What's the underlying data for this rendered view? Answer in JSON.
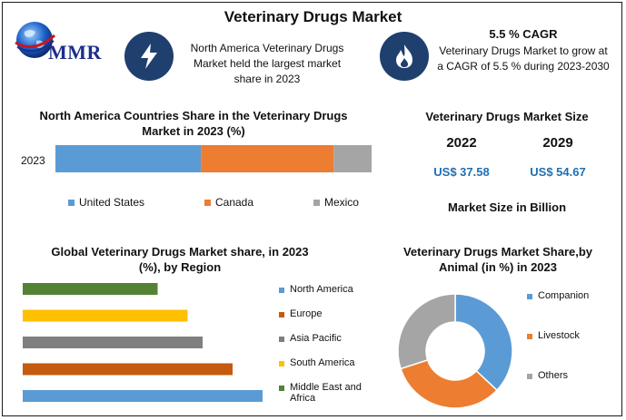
{
  "title": "Veterinary Drugs Market",
  "logo": {
    "text": "MMR"
  },
  "info": {
    "left_text": "North America Veterinary Drugs Market held the largest market share in 2023",
    "right_heading": "5.5 % CAGR",
    "right_text": "Veterinary Drugs Market to grow at a CAGR of 5.5 % during 2023-2030"
  },
  "market_size": {
    "title": "Veterinary Drugs Market Size",
    "year1": "2022",
    "year2": "2029",
    "value1": "US$ 37.58",
    "value2": "US$ 54.67",
    "unit_note": "Market Size in Billion"
  },
  "colors": {
    "blue": "#5b9bd5",
    "orange": "#ed7d31",
    "gray": "#a5a5a5",
    "yellow": "#ffc000",
    "green": "#548235",
    "brown": "#c55a11",
    "darkgray": "#7f7f7f",
    "icon_bg": "#1f3f6e"
  },
  "icons": [
    "globe-icon",
    "lightning-icon",
    "flame-icon"
  ],
  "chart_data": [
    {
      "type": "bar",
      "orientation": "horizontal",
      "stacked": true,
      "title": "North America Countries Share in the Veterinary Drugs  Market in 2023 (%)",
      "categories": [
        "2023"
      ],
      "series": [
        {
          "name": "United States",
          "values": [
            46
          ],
          "color": "#5b9bd5"
        },
        {
          "name": "Canada",
          "values": [
            42
          ],
          "color": "#ed7d31"
        },
        {
          "name": "Mexico",
          "values": [
            12
          ],
          "color": "#a5a5a5"
        }
      ],
      "xlim": [
        0,
        100
      ],
      "legend": "bottom"
    },
    {
      "type": "bar",
      "orientation": "horizontal",
      "title": "Global Veterinary Drugs Market share, in 2023 (%), by Region",
      "categories": [
        "Middle East and Africa",
        "South America",
        "Asia Pacific",
        "Europe",
        "North America"
      ],
      "values": [
        9,
        11,
        12,
        14,
        16
      ],
      "colors": [
        "#548235",
        "#ffc000",
        "#7f7f7f",
        "#c55a11",
        "#5b9bd5"
      ],
      "legend_order": [
        "North America",
        "Europe",
        "Asia Pacific",
        "South America",
        "Middle East and Africa"
      ],
      "legend_colors": [
        "#5b9bd5",
        "#c55a11",
        "#7f7f7f",
        "#ffc000",
        "#548235"
      ],
      "xlim": [
        0,
        16
      ],
      "legend": "right"
    },
    {
      "type": "pie",
      "donut": true,
      "title": "Veterinary Drugs Market Share,by Animal (in %) in 2023",
      "labels": [
        "Companion",
        "Livestock",
        "Others"
      ],
      "values": [
        37,
        33,
        30
      ],
      "colors": [
        "#5b9bd5",
        "#ed7d31",
        "#a5a5a5"
      ],
      "legend": "right"
    }
  ]
}
